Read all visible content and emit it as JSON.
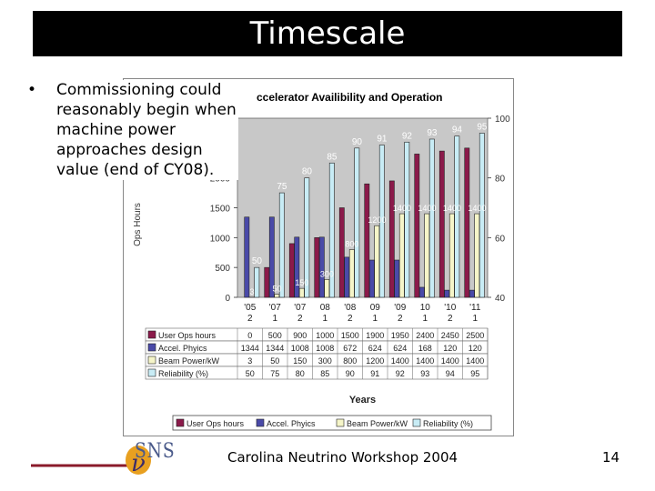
{
  "slide": {
    "title": "Timescale",
    "bullet": "•",
    "bullet_text": "Commissioning could reasonably begin when machine power approaches design value (end of CY08).",
    "footer": "Carolina Neutrino Workshop 2004",
    "page_number": "14",
    "logo_text": "SNS",
    "logo_mark": "ν"
  },
  "colors": {
    "user_ops": "#8b1a4a",
    "accel": "#4a4aa8",
    "beam_power": "#f5f5c8",
    "reliability": "#c8ecf5",
    "plot_bg": "#c8c8c8"
  },
  "chart_data": {
    "type": "bar",
    "title": "ccelerator Availibility and Operation",
    "xlabel": "Years",
    "ylabel": "Ops Hours",
    "y2label": "%",
    "ylim": [
      0,
      3000
    ],
    "y_ticks": [
      "0",
      "500",
      "1000",
      "1500",
      "2000"
    ],
    "y2lim": [
      40,
      100
    ],
    "y2_ticks": [
      "40",
      "60",
      "80",
      "100"
    ],
    "categories": [
      [
        "'05",
        "2"
      ],
      [
        "'07",
        "1"
      ],
      [
        "'07",
        "2"
      ],
      [
        "08",
        "1"
      ],
      [
        "'08",
        "2"
      ],
      [
        "09",
        "1"
      ],
      [
        "'09",
        "2"
      ],
      [
        "10",
        "1"
      ],
      [
        "'10",
        "2"
      ],
      [
        "'11",
        "1"
      ]
    ],
    "series": [
      {
        "name": "User Ops hours",
        "axis": "left",
        "values": [
          0,
          500,
          900,
          1000,
          1500,
          1900,
          1950,
          2400,
          2450,
          2500
        ],
        "table": [
          "0",
          "500",
          "900",
          "1000",
          "1500",
          "1900",
          "1950",
          "2400",
          "2450",
          "2500"
        ]
      },
      {
        "name": "Accel. Phyics",
        "axis": "left",
        "values": [
          1344,
          1344,
          1008,
          1008,
          672,
          624,
          624,
          168,
          120,
          120
        ],
        "table": [
          "1344",
          "1344",
          "1008",
          "1008",
          "672",
          "624",
          "624",
          "168",
          "120",
          "120"
        ]
      },
      {
        "name": "Beam Power/kW",
        "axis": "left",
        "values": [
          3,
          50,
          150,
          300,
          800,
          1200,
          1400,
          1400,
          1400,
          1400
        ],
        "table": [
          "3",
          "50",
          "150",
          "300",
          "800",
          "1200",
          "1400",
          "1400",
          "1400",
          "1400"
        ]
      },
      {
        "name": "Reliability (%)",
        "axis": "right",
        "values": [
          50,
          75,
          80,
          85,
          90,
          91,
          92,
          93,
          94,
          95
        ],
        "table": [
          "50",
          "75",
          "80",
          "85",
          "90",
          "91",
          "92",
          "93",
          "94",
          "95"
        ]
      }
    ],
    "legend": {
      "placement": "bottom",
      "entries": [
        "User Ops hours",
        "Accel. Phyics",
        "Beam Power/kW",
        "Reliability (%)"
      ]
    },
    "grid": false
  }
}
